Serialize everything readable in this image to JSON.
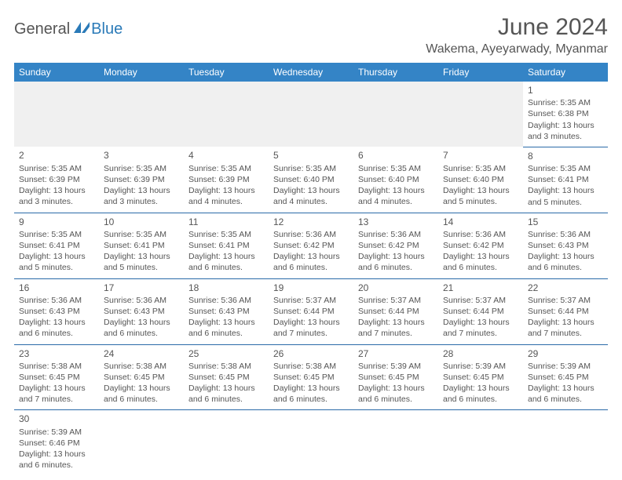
{
  "brand": {
    "part1": "General",
    "part2": "Blue"
  },
  "title": "June 2024",
  "location": "Wakema, Ayeyarwady, Myanmar",
  "colors": {
    "header_bg": "#3484c6",
    "header_text": "#ffffff",
    "body_text": "#555555",
    "cell_border": "#2a6aa8",
    "blank_bg": "#f0f0f0",
    "logo_accent": "#2a7ab8"
  },
  "typography": {
    "title_fontsize": 30,
    "location_fontsize": 16,
    "dayname_fontsize": 12,
    "cell_fontsize": 10.5
  },
  "days": [
    "Sunday",
    "Monday",
    "Tuesday",
    "Wednesday",
    "Thursday",
    "Friday",
    "Saturday"
  ],
  "weeks": [
    [
      null,
      null,
      null,
      null,
      null,
      null,
      {
        "n": "1",
        "sr": "Sunrise: 5:35 AM",
        "ss": "Sunset: 6:38 PM",
        "d1": "Daylight: 13 hours",
        "d2": "and 3 minutes."
      }
    ],
    [
      {
        "n": "2",
        "sr": "Sunrise: 5:35 AM",
        "ss": "Sunset: 6:39 PM",
        "d1": "Daylight: 13 hours",
        "d2": "and 3 minutes."
      },
      {
        "n": "3",
        "sr": "Sunrise: 5:35 AM",
        "ss": "Sunset: 6:39 PM",
        "d1": "Daylight: 13 hours",
        "d2": "and 3 minutes."
      },
      {
        "n": "4",
        "sr": "Sunrise: 5:35 AM",
        "ss": "Sunset: 6:39 PM",
        "d1": "Daylight: 13 hours",
        "d2": "and 4 minutes."
      },
      {
        "n": "5",
        "sr": "Sunrise: 5:35 AM",
        "ss": "Sunset: 6:40 PM",
        "d1": "Daylight: 13 hours",
        "d2": "and 4 minutes."
      },
      {
        "n": "6",
        "sr": "Sunrise: 5:35 AM",
        "ss": "Sunset: 6:40 PM",
        "d1": "Daylight: 13 hours",
        "d2": "and 4 minutes."
      },
      {
        "n": "7",
        "sr": "Sunrise: 5:35 AM",
        "ss": "Sunset: 6:40 PM",
        "d1": "Daylight: 13 hours",
        "d2": "and 5 minutes."
      },
      {
        "n": "8",
        "sr": "Sunrise: 5:35 AM",
        "ss": "Sunset: 6:41 PM",
        "d1": "Daylight: 13 hours",
        "d2": "and 5 minutes."
      }
    ],
    [
      {
        "n": "9",
        "sr": "Sunrise: 5:35 AM",
        "ss": "Sunset: 6:41 PM",
        "d1": "Daylight: 13 hours",
        "d2": "and 5 minutes."
      },
      {
        "n": "10",
        "sr": "Sunrise: 5:35 AM",
        "ss": "Sunset: 6:41 PM",
        "d1": "Daylight: 13 hours",
        "d2": "and 5 minutes."
      },
      {
        "n": "11",
        "sr": "Sunrise: 5:35 AM",
        "ss": "Sunset: 6:41 PM",
        "d1": "Daylight: 13 hours",
        "d2": "and 6 minutes."
      },
      {
        "n": "12",
        "sr": "Sunrise: 5:36 AM",
        "ss": "Sunset: 6:42 PM",
        "d1": "Daylight: 13 hours",
        "d2": "and 6 minutes."
      },
      {
        "n": "13",
        "sr": "Sunrise: 5:36 AM",
        "ss": "Sunset: 6:42 PM",
        "d1": "Daylight: 13 hours",
        "d2": "and 6 minutes."
      },
      {
        "n": "14",
        "sr": "Sunrise: 5:36 AM",
        "ss": "Sunset: 6:42 PM",
        "d1": "Daylight: 13 hours",
        "d2": "and 6 minutes."
      },
      {
        "n": "15",
        "sr": "Sunrise: 5:36 AM",
        "ss": "Sunset: 6:43 PM",
        "d1": "Daylight: 13 hours",
        "d2": "and 6 minutes."
      }
    ],
    [
      {
        "n": "16",
        "sr": "Sunrise: 5:36 AM",
        "ss": "Sunset: 6:43 PM",
        "d1": "Daylight: 13 hours",
        "d2": "and 6 minutes."
      },
      {
        "n": "17",
        "sr": "Sunrise: 5:36 AM",
        "ss": "Sunset: 6:43 PM",
        "d1": "Daylight: 13 hours",
        "d2": "and 6 minutes."
      },
      {
        "n": "18",
        "sr": "Sunrise: 5:36 AM",
        "ss": "Sunset: 6:43 PM",
        "d1": "Daylight: 13 hours",
        "d2": "and 6 minutes."
      },
      {
        "n": "19",
        "sr": "Sunrise: 5:37 AM",
        "ss": "Sunset: 6:44 PM",
        "d1": "Daylight: 13 hours",
        "d2": "and 7 minutes."
      },
      {
        "n": "20",
        "sr": "Sunrise: 5:37 AM",
        "ss": "Sunset: 6:44 PM",
        "d1": "Daylight: 13 hours",
        "d2": "and 7 minutes."
      },
      {
        "n": "21",
        "sr": "Sunrise: 5:37 AM",
        "ss": "Sunset: 6:44 PM",
        "d1": "Daylight: 13 hours",
        "d2": "and 7 minutes."
      },
      {
        "n": "22",
        "sr": "Sunrise: 5:37 AM",
        "ss": "Sunset: 6:44 PM",
        "d1": "Daylight: 13 hours",
        "d2": "and 7 minutes."
      }
    ],
    [
      {
        "n": "23",
        "sr": "Sunrise: 5:38 AM",
        "ss": "Sunset: 6:45 PM",
        "d1": "Daylight: 13 hours",
        "d2": "and 7 minutes."
      },
      {
        "n": "24",
        "sr": "Sunrise: 5:38 AM",
        "ss": "Sunset: 6:45 PM",
        "d1": "Daylight: 13 hours",
        "d2": "and 6 minutes."
      },
      {
        "n": "25",
        "sr": "Sunrise: 5:38 AM",
        "ss": "Sunset: 6:45 PM",
        "d1": "Daylight: 13 hours",
        "d2": "and 6 minutes."
      },
      {
        "n": "26",
        "sr": "Sunrise: 5:38 AM",
        "ss": "Sunset: 6:45 PM",
        "d1": "Daylight: 13 hours",
        "d2": "and 6 minutes."
      },
      {
        "n": "27",
        "sr": "Sunrise: 5:39 AM",
        "ss": "Sunset: 6:45 PM",
        "d1": "Daylight: 13 hours",
        "d2": "and 6 minutes."
      },
      {
        "n": "28",
        "sr": "Sunrise: 5:39 AM",
        "ss": "Sunset: 6:45 PM",
        "d1": "Daylight: 13 hours",
        "d2": "and 6 minutes."
      },
      {
        "n": "29",
        "sr": "Sunrise: 5:39 AM",
        "ss": "Sunset: 6:45 PM",
        "d1": "Daylight: 13 hours",
        "d2": "and 6 minutes."
      }
    ],
    [
      {
        "n": "30",
        "sr": "Sunrise: 5:39 AM",
        "ss": "Sunset: 6:46 PM",
        "d1": "Daylight: 13 hours",
        "d2": "and 6 minutes."
      },
      null,
      null,
      null,
      null,
      null,
      null
    ]
  ]
}
